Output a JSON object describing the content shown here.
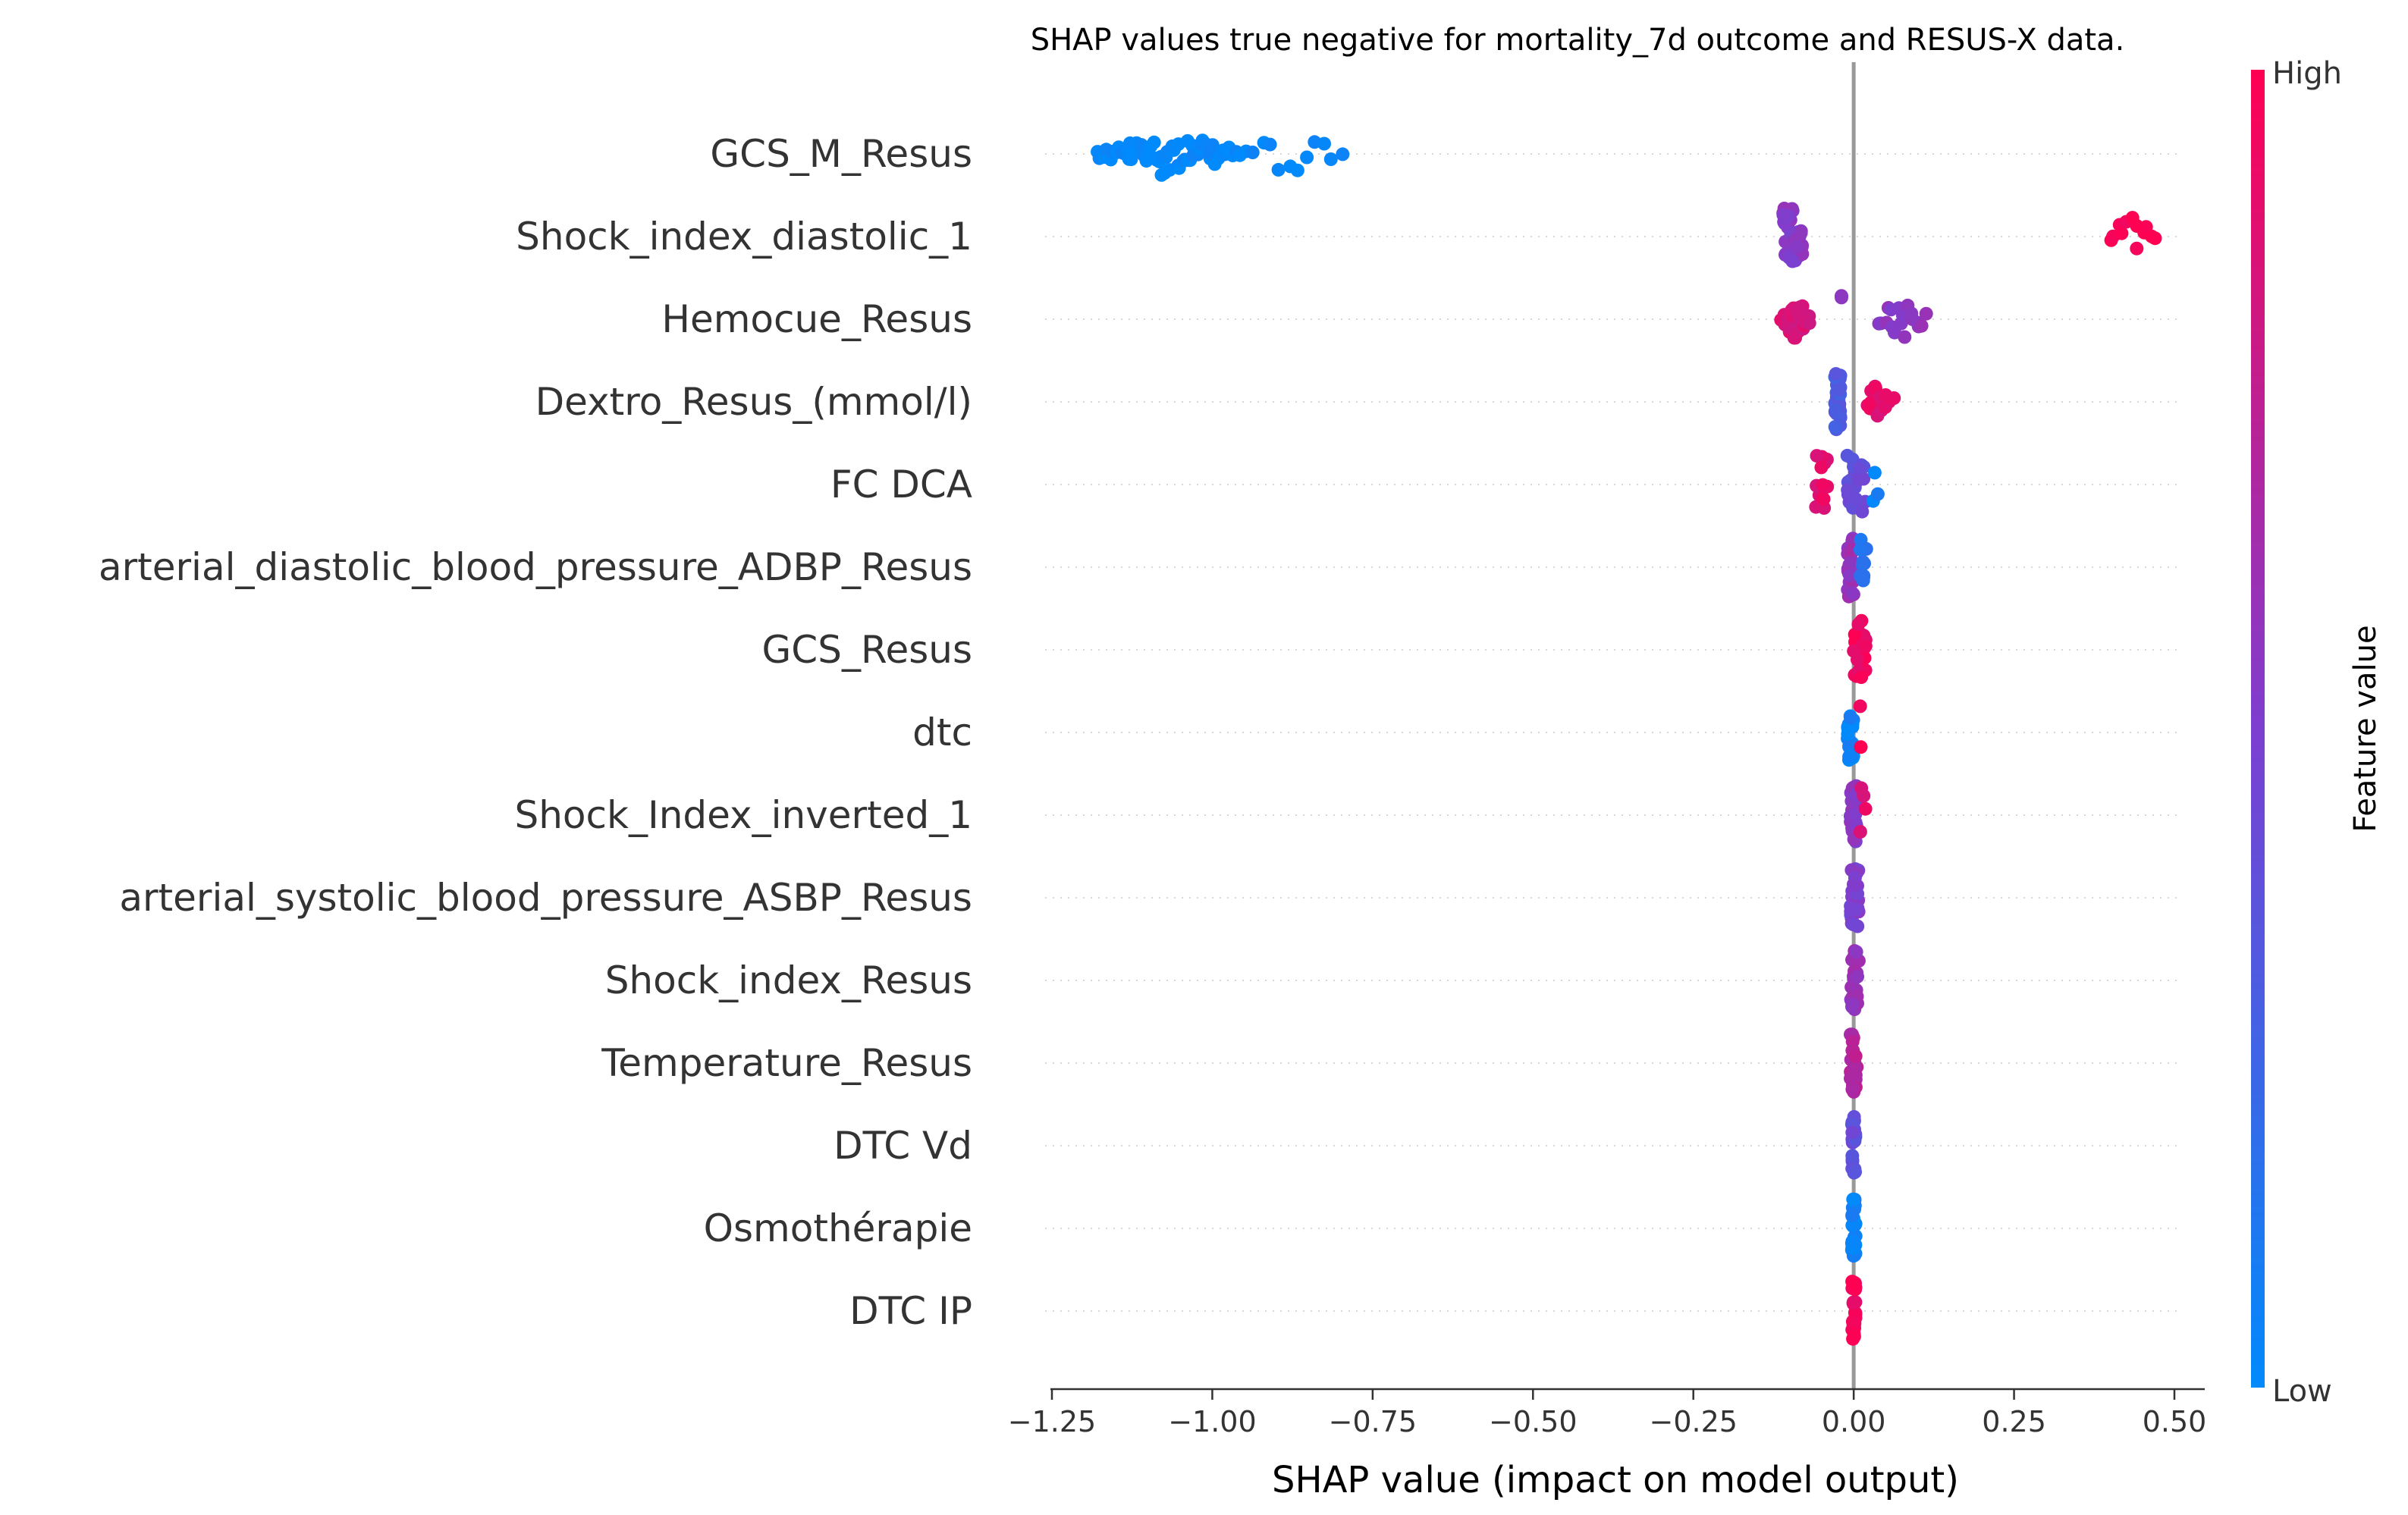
{
  "chart_data": {
    "type": "scatter",
    "subtype": "shap-beeswarm",
    "title": "SHAP values true negative for mortality_7d outcome and RESUS-X data.",
    "xlabel": "SHAP value (impact on model output)",
    "xlim": [
      -1.25,
      0.5
    ],
    "xticks": [
      -1.25,
      -1.0,
      -0.75,
      -0.5,
      -0.25,
      0.0,
      0.25,
      0.5
    ],
    "xtick_labels": [
      "−1.25",
      "−1.00",
      "−0.75",
      "−0.50",
      "−0.25",
      "0.00",
      "0.25",
      "0.50"
    ],
    "colorbar": {
      "label": "Feature value",
      "high_label": "High",
      "low_label": "Low",
      "high_color": "#ff0052",
      "mid_color": "#7d3fd0",
      "low_color": "#008afb"
    },
    "features": [
      {
        "name": "GCS_M_Resus",
        "clusters": [
          {
            "xmin": -1.18,
            "xmax": -0.96,
            "n": 70,
            "c": 0.0
          },
          {
            "xmin": -0.95,
            "xmax": -0.8,
            "n": 12,
            "c": 0.0
          }
        ]
      },
      {
        "name": "Shock_index_diastolic_1",
        "clusters": [
          {
            "xmin": -0.11,
            "xmax": -0.08,
            "n": 45,
            "c": 0.55
          },
          {
            "xmin": 0.4,
            "xmax": 0.47,
            "n": 12,
            "c": 1.0
          }
        ]
      },
      {
        "name": "Hemocue_Resus",
        "clusters": [
          {
            "xmin": -0.11,
            "xmax": -0.07,
            "n": 40,
            "c": 0.85
          },
          {
            "xmin": -0.02,
            "xmax": -0.02,
            "n": 2,
            "c": 0.55
          },
          {
            "xmin": 0.04,
            "xmax": 0.11,
            "n": 18,
            "c": 0.55
          }
        ]
      },
      {
        "name": "Dextro_Resus_(mmol/l)",
        "clusters": [
          {
            "xmin": -0.03,
            "xmax": -0.02,
            "n": 30,
            "c": 0.3
          },
          {
            "xmin": 0.02,
            "xmax": 0.06,
            "n": 16,
            "c": 0.9
          }
        ]
      },
      {
        "name": "FC  DCA",
        "clusters": [
          {
            "xmin": -0.06,
            "xmax": -0.04,
            "n": 16,
            "c": 0.9
          },
          {
            "xmin": -0.01,
            "xmax": 0.02,
            "n": 26,
            "c": 0.4
          },
          {
            "xmin": 0.03,
            "xmax": 0.04,
            "n": 3,
            "c": 0.05
          }
        ]
      },
      {
        "name": "arterial_diastolic_blood_pressure_ADBP_Resus",
        "clusters": [
          {
            "xmin": -0.01,
            "xmax": 0.0,
            "n": 24,
            "c": 0.6
          },
          {
            "xmin": 0.01,
            "xmax": 0.02,
            "n": 10,
            "c": 0.15
          }
        ]
      },
      {
        "name": "GCS_Resus",
        "clusters": [
          {
            "xmin": 0.0,
            "xmax": 0.02,
            "n": 30,
            "c": 0.95
          }
        ]
      },
      {
        "name": "dtc",
        "clusters": [
          {
            "xmin": -0.01,
            "xmax": 0.0,
            "n": 28,
            "c": 0.05
          },
          {
            "xmin": 0.01,
            "xmax": 0.01,
            "n": 2,
            "c": 1.0
          }
        ]
      },
      {
        "name": "Shock_Index_inverted_1",
        "clusters": [
          {
            "xmin": -0.005,
            "xmax": 0.005,
            "n": 26,
            "c": 0.55
          },
          {
            "xmin": 0.01,
            "xmax": 0.02,
            "n": 4,
            "c": 0.9
          }
        ]
      },
      {
        "name": "arterial_systolic_blood_pressure_ASBP_Resus",
        "clusters": [
          {
            "xmin": -0.005,
            "xmax": 0.008,
            "n": 28,
            "c": 0.5
          }
        ]
      },
      {
        "name": "Shock_index_Resus",
        "clusters": [
          {
            "xmin": -0.005,
            "xmax": 0.008,
            "n": 28,
            "c": 0.6
          }
        ]
      },
      {
        "name": "Temperature_Resus",
        "clusters": [
          {
            "xmin": -0.005,
            "xmax": 0.005,
            "n": 28,
            "c": 0.7
          }
        ]
      },
      {
        "name": "DTC Vd",
        "clusters": [
          {
            "xmin": -0.003,
            "xmax": 0.003,
            "n": 28,
            "c": 0.4
          }
        ]
      },
      {
        "name": "Osmothérapie",
        "clusters": [
          {
            "xmin": -0.003,
            "xmax": 0.003,
            "n": 28,
            "c": 0.05
          }
        ]
      },
      {
        "name": "DTC IP",
        "clusters": [
          {
            "xmin": -0.003,
            "xmax": 0.003,
            "n": 28,
            "c": 0.95
          }
        ]
      }
    ]
  }
}
